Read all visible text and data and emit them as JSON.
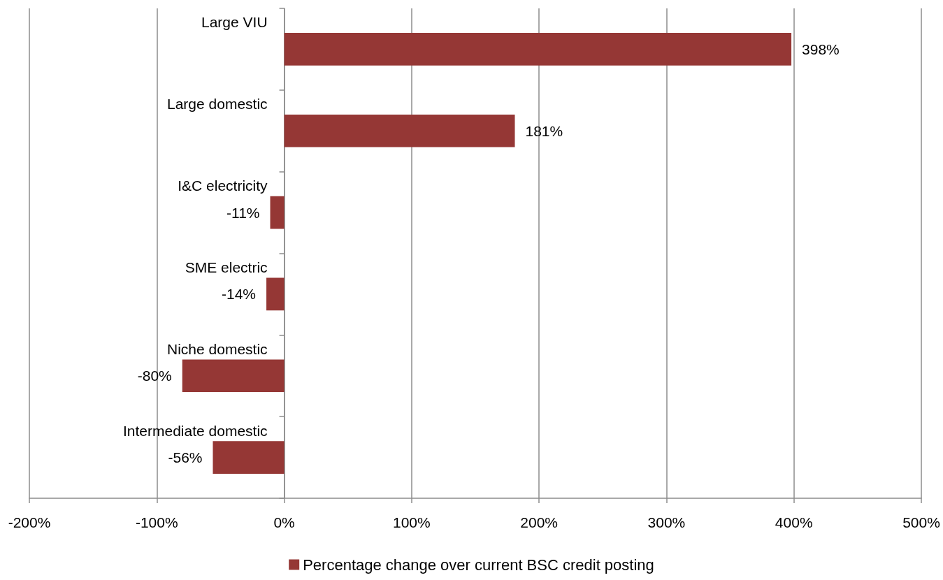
{
  "chart_data": {
    "type": "bar",
    "orientation": "horizontal",
    "categories": [
      "Large VIU",
      "Large domestic",
      "I&C electricity",
      "SME electric",
      "Niche domestic",
      "Intermediate domestic"
    ],
    "series": [
      {
        "name": "Percentage change over current BSC credit posting",
        "color": "#953735",
        "values": [
          398,
          181,
          -11,
          -14,
          -80,
          -56
        ],
        "value_labels": [
          "398%",
          "181%",
          "-11%",
          "-14%",
          "-80%",
          "-56%"
        ]
      }
    ],
    "xlim": [
      -200,
      500
    ],
    "xticks": [
      {
        "value": -200,
        "label": "-200%"
      },
      {
        "value": -100,
        "label": "-100%"
      },
      {
        "value": 0,
        "label": "0%"
      },
      {
        "value": 100,
        "label": "100%"
      },
      {
        "value": 200,
        "label": "200%"
      },
      {
        "value": 300,
        "label": "300%"
      },
      {
        "value": 400,
        "label": "400%"
      },
      {
        "value": 500,
        "label": "500%"
      }
    ],
    "grid": "x",
    "legend": "bottom"
  }
}
